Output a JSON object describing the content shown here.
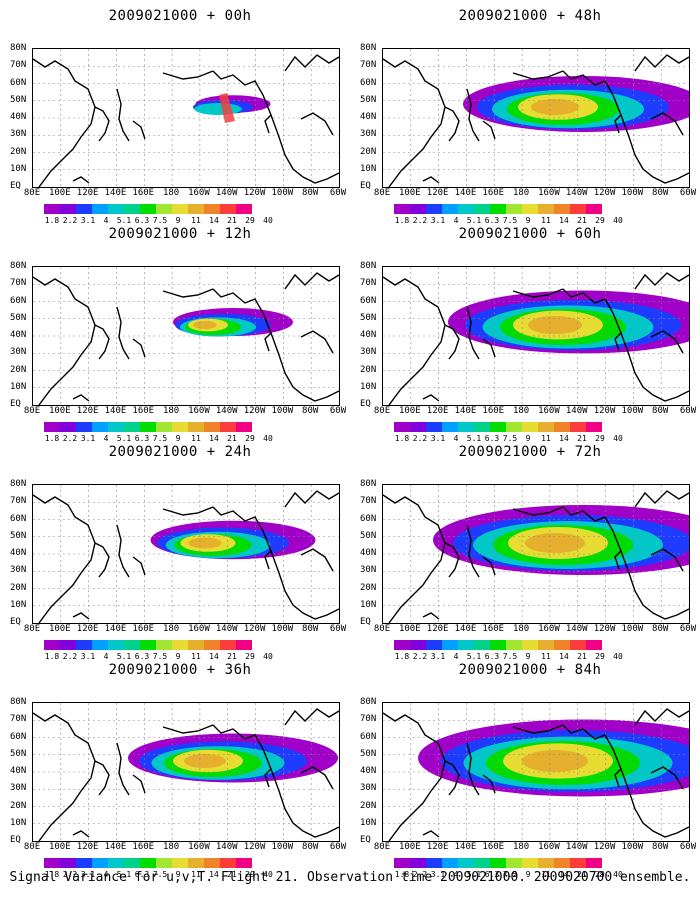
{
  "panels": [
    {
      "title": "2009021000 + 00h"
    },
    {
      "title": "2009021000 + 48h"
    },
    {
      "title": "2009021000 + 12h"
    },
    {
      "title": "2009021000 + 60h"
    },
    {
      "title": "2009021000 + 24h"
    },
    {
      "title": "2009021000 + 72h"
    },
    {
      "title": "2009021000 + 36h"
    },
    {
      "title": "2009021000 + 84h"
    }
  ],
  "lat_labels": [
    "80N",
    "70N",
    "60N",
    "50N",
    "40N",
    "30N",
    "20N",
    "10N",
    "EQ"
  ],
  "lon_labels": [
    "80E",
    "100E",
    "120E",
    "140E",
    "160E",
    "180",
    "160W",
    "140W",
    "120W",
    "100W",
    "80W",
    "60W"
  ],
  "colorbar": {
    "labels": [
      "1.8",
      "2.2",
      "3.1",
      "4",
      "5.1",
      "6.3",
      "7.5",
      "9",
      "11",
      "14",
      "21",
      "29",
      "40"
    ],
    "colors": [
      "#a000c8",
      "#8200dc",
      "#1e3cff",
      "#00a0ff",
      "#00c8c8",
      "#00d28c",
      "#00dc00",
      "#a0e632",
      "#e6dc32",
      "#e6af2d",
      "#f08228",
      "#fa3c3c",
      "#f00082"
    ]
  },
  "caption": "Signal Variance for u,v,T. Flight 21. Observation time 2009021000. 2009020700 ensemble."
}
